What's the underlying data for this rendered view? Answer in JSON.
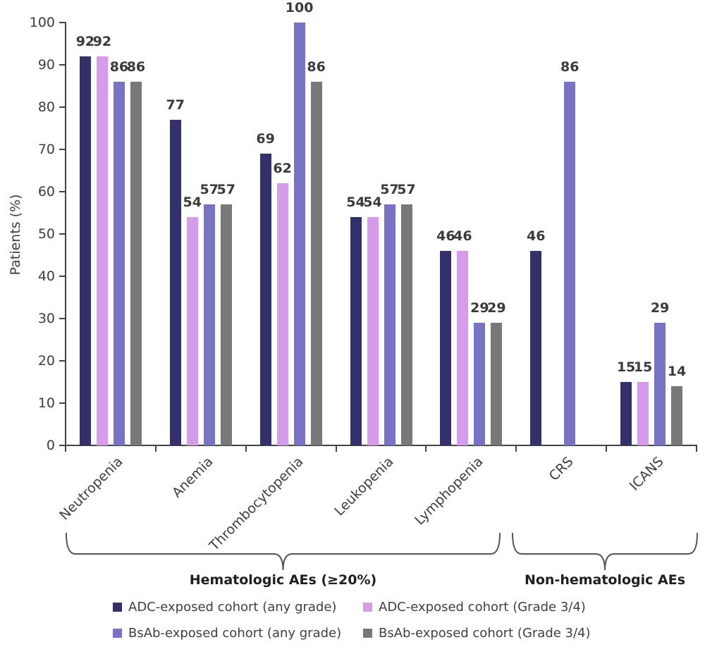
{
  "chart_data": {
    "type": "bar",
    "title": "",
    "xlabel": "",
    "ylabel": "Patients (%)",
    "ylim": [
      0,
      100
    ],
    "ytick_step": 10,
    "grid": false,
    "legend_position": "bottom",
    "categories": [
      "Neutropenia",
      "Anemia",
      "Thrombocytopenia",
      "Leukopenia",
      "Lymphopenia",
      "CRS",
      "ICANS"
    ],
    "series": [
      {
        "name": "ADC-exposed cohort (any grade)",
        "color": "#34306B",
        "values": [
          92,
          77,
          69,
          54,
          46,
          46,
          15
        ]
      },
      {
        "name": "ADC-exposed cohort (Grade 3/4)",
        "color": "#D69BE9",
        "values": [
          92,
          54,
          62,
          54,
          46,
          null,
          15
        ]
      },
      {
        "name": "BsAb-exposed cohort (any grade)",
        "color": "#7973C6",
        "values": [
          86,
          57,
          100,
          57,
          29,
          86,
          29
        ]
      },
      {
        "name": "BsAb-exposed cohort (Grade 3/4)",
        "color": "#787878",
        "values": [
          86,
          57,
          86,
          57,
          29,
          null,
          14
        ]
      }
    ],
    "category_groups": [
      {
        "label": "Hematologic AEs (≥20%)",
        "categories": [
          "Neutropenia",
          "Anemia",
          "Thrombocytopenia",
          "Leukopenia",
          "Lymphopenia"
        ]
      },
      {
        "label": "Non-hematologic AEs",
        "categories": [
          "CRS",
          "ICANS"
        ]
      }
    ],
    "colors": {
      "axis": "#42424c",
      "tick_text": "#3d3d3d",
      "value_text": "#3b3b3b",
      "brace": "#53535c"
    }
  }
}
